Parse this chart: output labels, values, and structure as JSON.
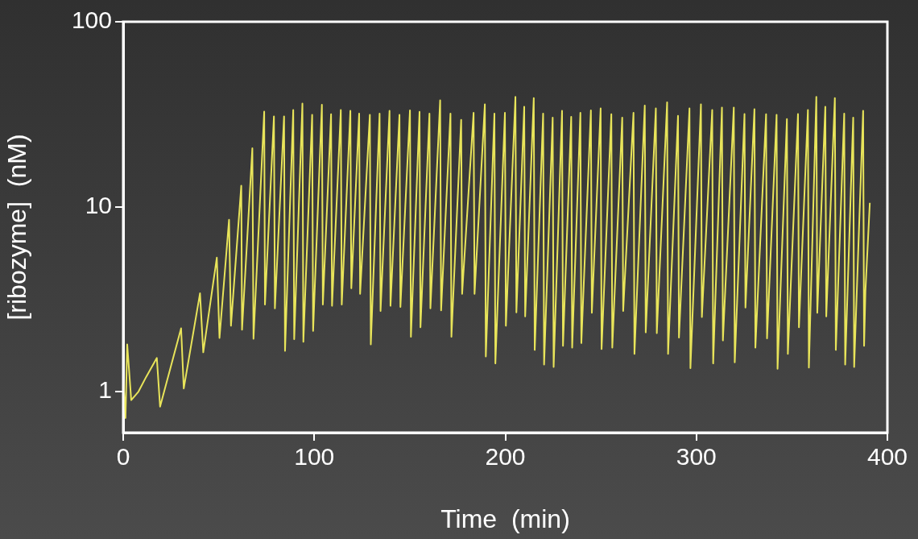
{
  "chart_data": {
    "type": "line",
    "xlabel": "Time  (min)",
    "ylabel": "[ribozyme]  (nM)",
    "xlim": [
      0,
      400
    ],
    "xticks": [
      0,
      100,
      200,
      300,
      400
    ],
    "ylim": [
      0.62,
      100
    ],
    "yticks": [
      1,
      10,
      100
    ],
    "log": "y",
    "marker": "none",
    "line_style": "solid",
    "x": [
      0,
      1.2,
      2.1,
      4.2,
      8,
      12,
      17.6,
      19.3,
      30.3,
      31.7,
      40.2,
      41.9,
      49,
      50.4,
      55.4,
      56.4,
      61.8,
      62.2,
      67.6,
      68.2,
      73.8,
      74.2,
      78.9,
      79.4,
      84.2,
      84.7,
      89.0,
      89.5,
      93.8,
      94.3,
      98.9,
      99.4,
      104.0,
      104.5,
      108.8,
      109.3,
      113.9,
      114.4,
      118.9,
      119.4,
      123.5,
      124.0,
      129.1,
      129.6,
      134.2,
      134.7,
      139.4,
      139.9,
      144.6,
      145.1,
      150.1,
      150.6,
      155.1,
      155.6,
      160.3,
      160.8,
      165.9,
      166.4,
      171.3,
      171.8,
      176.9,
      177.4,
      183.4,
      183.9,
      189.3,
      189.8,
      194.3,
      194.8,
      199.8,
      200.3,
      205.3,
      205.8,
      209.9,
      210.4,
      214.9,
      215.4,
      219.8,
      220.3,
      224.8,
      225.3,
      229.7,
      230.2,
      234.5,
      235.0,
      239.3,
      239.8,
      244.8,
      245.3,
      249.9,
      250.4,
      255.5,
      256.0,
      261.2,
      261.7,
      267.1,
      267.6,
      273.0,
      273.5,
      278.8,
      279.3,
      284.7,
      285.2,
      290.4,
      290.9,
      296.4,
      296.9,
      302.4,
      302.9,
      308.3,
      308.8,
      313.4,
      313.9,
      319.6,
      320.1,
      325.2,
      325.7,
      330.4,
      330.9,
      336.5,
      337.0,
      342.0,
      342.5,
      347.4,
      347.9,
      353.2,
      353.7,
      358.4,
      358.9,
      362.8,
      363.3,
      367.5,
      368.0,
      372.5,
      373.0,
      377.4,
      377.9,
      382.1,
      382.6,
      387.3,
      387.8,
      388.5,
      390.8
    ],
    "series": [
      {
        "color": "#e8e45a",
        "values": [
          1.2,
          0.72,
          1.8,
          0.9,
          1.0,
          1.2,
          1.52,
          0.83,
          2.2,
          1.04,
          3.4,
          1.63,
          5.3,
          1.95,
          8.5,
          2.27,
          13,
          2.16,
          20.7,
          1.93,
          32.7,
          2.96,
          30.8,
          2.82,
          30.8,
          1.66,
          33.3,
          1.92,
          36.1,
          1.86,
          31.4,
          2.13,
          35.6,
          2.96,
          31.6,
          2.91,
          33.3,
          2.96,
          33.0,
          3.62,
          31.9,
          3.38,
          31.4,
          1.8,
          31.9,
          2.73,
          33.0,
          2.91,
          31.4,
          2.87,
          33.2,
          1.98,
          32.6,
          2.23,
          31.9,
          2.82,
          37.6,
          2.75,
          31.9,
          1.98,
          29.5,
          3.38,
          32.2,
          3.38,
          35.8,
          1.55,
          31.9,
          1.42,
          32.2,
          2.27,
          39.2,
          2.68,
          34.7,
          2.55,
          38.7,
          1.68,
          31.9,
          1.4,
          30.3,
          1.36,
          33.0,
          1.77,
          30.6,
          1.73,
          32.2,
          1.83,
          33.2,
          2.67,
          34.0,
          1.7,
          31.6,
          1.73,
          30.3,
          2.73,
          32.2,
          1.6,
          35.2,
          2.09,
          34.0,
          2.07,
          36.7,
          1.6,
          31.0,
          1.96,
          34.0,
          1.34,
          35.8,
          2.53,
          33.3,
          1.42,
          34.4,
          1.89,
          34.4,
          1.44,
          31.7,
          2.85,
          33.7,
          1.73,
          31.6,
          1.94,
          31.4,
          1.33,
          29.8,
          1.6,
          31.7,
          2.23,
          33.3,
          1.35,
          39.2,
          2.67,
          34.7,
          2.55,
          38.7,
          1.68,
          31.9,
          1.4,
          30.3,
          1.36,
          33.0,
          1.77,
          3.5,
          10.5
        ]
      }
    ]
  }
}
